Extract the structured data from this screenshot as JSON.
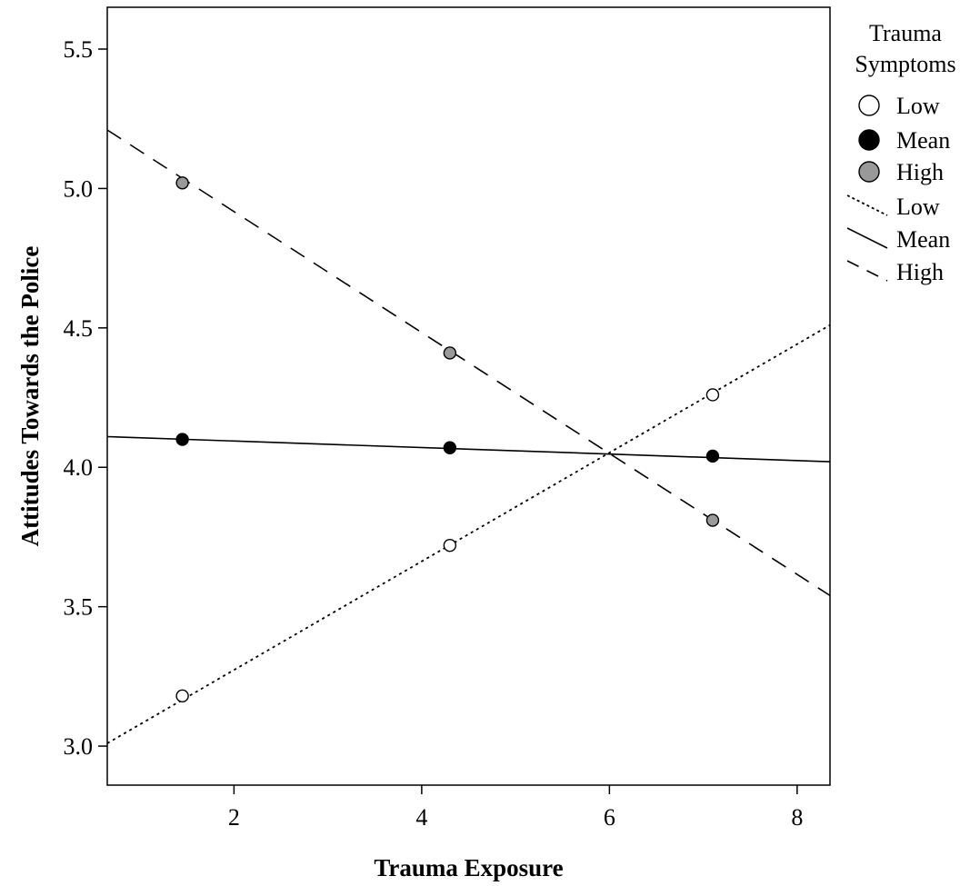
{
  "chart_data": {
    "type": "scatter",
    "title": "",
    "xlabel": "Trauma Exposure",
    "ylabel": "Attitudes Towards the Police",
    "xlim": [
      0.65,
      8.35
    ],
    "ylim": [
      2.86,
      5.65
    ],
    "x_ticks": [
      2,
      4,
      6,
      8
    ],
    "y_ticks": [
      3.0,
      3.5,
      4.0,
      4.5,
      5.0,
      5.5
    ],
    "x_tick_labels": [
      "2",
      "4",
      "6",
      "8"
    ],
    "y_tick_labels": [
      "3.0",
      "3.5",
      "4.0",
      "4.5",
      "5.0",
      "5.5"
    ],
    "grid": false,
    "legend": {
      "title_line1": "Trauma",
      "title_line2": "Symptoms",
      "position": "right",
      "marker_items": [
        "Low",
        "Mean",
        "High"
      ],
      "line_items": [
        "Low",
        "Mean",
        "High"
      ]
    },
    "series": [
      {
        "name": "Low",
        "marker": "open-circle",
        "line_style": "dotted",
        "marker_color": "#ffffff",
        "points": [
          {
            "x": 1.45,
            "y": 3.18
          },
          {
            "x": 4.3,
            "y": 3.72
          },
          {
            "x": 7.1,
            "y": 4.26
          }
        ],
        "line": [
          {
            "x": 0.65,
            "y": 3.01
          },
          {
            "x": 8.35,
            "y": 4.51
          }
        ]
      },
      {
        "name": "Mean",
        "marker": "filled-circle",
        "line_style": "solid",
        "marker_color": "#000000",
        "points": [
          {
            "x": 1.45,
            "y": 4.1
          },
          {
            "x": 4.3,
            "y": 4.07
          },
          {
            "x": 7.1,
            "y": 4.04
          }
        ],
        "line": [
          {
            "x": 0.65,
            "y": 4.11
          },
          {
            "x": 8.35,
            "y": 4.02
          }
        ]
      },
      {
        "name": "High",
        "marker": "gray-circle",
        "line_style": "dashed",
        "marker_color": "#999999",
        "points": [
          {
            "x": 1.45,
            "y": 5.02
          },
          {
            "x": 4.3,
            "y": 4.41
          },
          {
            "x": 7.1,
            "y": 3.81
          }
        ],
        "line": [
          {
            "x": 0.65,
            "y": 5.21
          },
          {
            "x": 8.35,
            "y": 3.54
          }
        ]
      }
    ]
  }
}
